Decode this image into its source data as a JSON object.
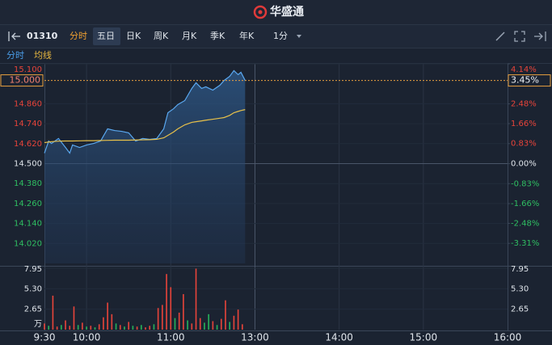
{
  "header": {
    "title": "华盛通"
  },
  "toolbar": {
    "symbol": "01310",
    "tabs": [
      "分时",
      "五日",
      "日K",
      "周K",
      "月K",
      "季K",
      "年K",
      "1分"
    ]
  },
  "chart_data": {
    "type": "line",
    "x": [
      0,
      3,
      5,
      10,
      15,
      18,
      20,
      25,
      30,
      35,
      40,
      45,
      50,
      55,
      60,
      65,
      70,
      75,
      80,
      85,
      88,
      92,
      95,
      100,
      105,
      108,
      112,
      115,
      120,
      125,
      128,
      132,
      135,
      138,
      140,
      143
    ],
    "xlim": [
      0,
      330
    ],
    "xticks": [
      {
        "value": 0,
        "label": "9:30"
      },
      {
        "value": 30,
        "label": "10:00"
      },
      {
        "value": 90,
        "label": "11:00"
      },
      {
        "value": 150,
        "label": "13:00"
      },
      {
        "value": 210,
        "label": "14:00"
      },
      {
        "value": 270,
        "label": "15:00"
      },
      {
        "value": 330,
        "label": "16:00"
      }
    ],
    "ylim": [
      13.9,
      15.1
    ],
    "yticks": [
      {
        "value": 15.1,
        "label": "15.100"
      },
      {
        "value": 14.86,
        "label": "14.860"
      },
      {
        "value": 14.74,
        "label": "14.740"
      },
      {
        "value": 14.62,
        "label": "14.620"
      },
      {
        "value": 14.5,
        "label": "14.500"
      },
      {
        "value": 14.38,
        "label": "14.380"
      },
      {
        "value": 14.26,
        "label": "14.260"
      },
      {
        "value": 14.14,
        "label": "14.140"
      },
      {
        "value": 14.02,
        "label": "14.020"
      }
    ],
    "y2lim": [
      -4.14,
      4.14
    ],
    "y2ticks": [
      {
        "value": 4.14,
        "label": "4.14%"
      },
      {
        "value": 2.48,
        "label": "2.48%"
      },
      {
        "value": 1.66,
        "label": "1.66%"
      },
      {
        "value": 0.83,
        "label": "0.83%"
      },
      {
        "value": 0,
        "label": "0.00%"
      },
      {
        "value": -0.83,
        "label": "-0.83%"
      },
      {
        "value": -1.66,
        "label": "-1.66%"
      },
      {
        "value": -2.48,
        "label": "-2.48%"
      },
      {
        "value": -3.31,
        "label": "-3.31%"
      }
    ],
    "series": [
      {
        "name": "分时",
        "color": "#5aa8f0",
        "values": [
          14.563,
          14.636,
          14.621,
          14.651,
          14.597,
          14.563,
          14.612,
          14.597,
          14.612,
          14.621,
          14.636,
          14.709,
          14.699,
          14.694,
          14.685,
          14.636,
          14.651,
          14.646,
          14.651,
          14.709,
          14.806,
          14.83,
          14.855,
          14.879,
          14.952,
          14.986,
          14.952,
          14.962,
          14.942,
          14.971,
          15.0,
          15.025,
          15.059,
          15.035,
          15.049,
          15.0
        ]
      },
      {
        "name": "均线",
        "color": "#e8c14a",
        "values": [
          14.626,
          14.63,
          14.632,
          14.635,
          14.636,
          14.636,
          14.636,
          14.637,
          14.638,
          14.638,
          14.639,
          14.64,
          14.641,
          14.641,
          14.641,
          14.642,
          14.643,
          14.644,
          14.646,
          14.655,
          14.67,
          14.69,
          14.709,
          14.733,
          14.748,
          14.752,
          14.757,
          14.761,
          14.767,
          14.773,
          14.777,
          14.79,
          14.806,
          14.814,
          14.819,
          14.825
        ]
      }
    ],
    "last": {
      "value": 15.0,
      "label": "15.000",
      "change_label": "3.45%"
    },
    "volume": {
      "unit": "万",
      "ylim": [
        0,
        7.95
      ],
      "yticks": [
        7.95,
        {
          "value": 5.3,
          "label": "5.30"
        },
        2.65
      ],
      "x": [
        0,
        3,
        6,
        9,
        12,
        15,
        18,
        21,
        24,
        27,
        30,
        33,
        36,
        39,
        42,
        45,
        48,
        51,
        54,
        57,
        60,
        63,
        66,
        69,
        72,
        75,
        78,
        81,
        84,
        87,
        90,
        93,
        96,
        99,
        102,
        105,
        108,
        111,
        114,
        117,
        120,
        123,
        126,
        129,
        132,
        135,
        138,
        141
      ],
      "values": [
        0.8,
        0.5,
        4.4,
        0.4,
        0.6,
        1.2,
        0.5,
        3.0,
        0.6,
        0.9,
        0.4,
        0.5,
        0.3,
        0.7,
        1.6,
        3.5,
        2.0,
        0.8,
        0.6,
        0.4,
        1.0,
        0.5,
        0.4,
        0.6,
        0.3,
        0.5,
        0.7,
        2.8,
        3.2,
        7.2,
        5.5,
        1.5,
        2.2,
        4.6,
        1.2,
        0.8,
        7.9,
        1.5,
        0.9,
        2.0,
        1.1,
        0.6,
        1.4,
        3.8,
        1.0,
        1.8,
        2.6,
        0.7
      ],
      "colors": [
        "#e8443a",
        "#26b35a",
        "#e8443a",
        "#e8443a",
        "#26b35a",
        "#e8443a",
        "#e8443a",
        "#e8443a",
        "#26b35a",
        "#e8443a",
        "#26b35a",
        "#e8443a",
        "#26b35a",
        "#e8443a",
        "#e8443a",
        "#e8443a",
        "#e8443a",
        "#26b35a",
        "#e8443a",
        "#26b35a",
        "#e8443a",
        "#26b35a",
        "#e8443a",
        "#26b35a",
        "#e8443a",
        "#e8443a",
        "#26b35a",
        "#e8443a",
        "#e8443a",
        "#e8443a",
        "#e8443a",
        "#26b35a",
        "#e8443a",
        "#e8443a",
        "#26b35a",
        "#e8443a",
        "#e8443a",
        "#e8443a",
        "#26b35a",
        "#26b35a",
        "#e8443a",
        "#26b35a",
        "#e8443a",
        "#e8443a",
        "#26b35a",
        "#e8443a",
        "#e8443a",
        "#e8443a"
      ]
    }
  }
}
